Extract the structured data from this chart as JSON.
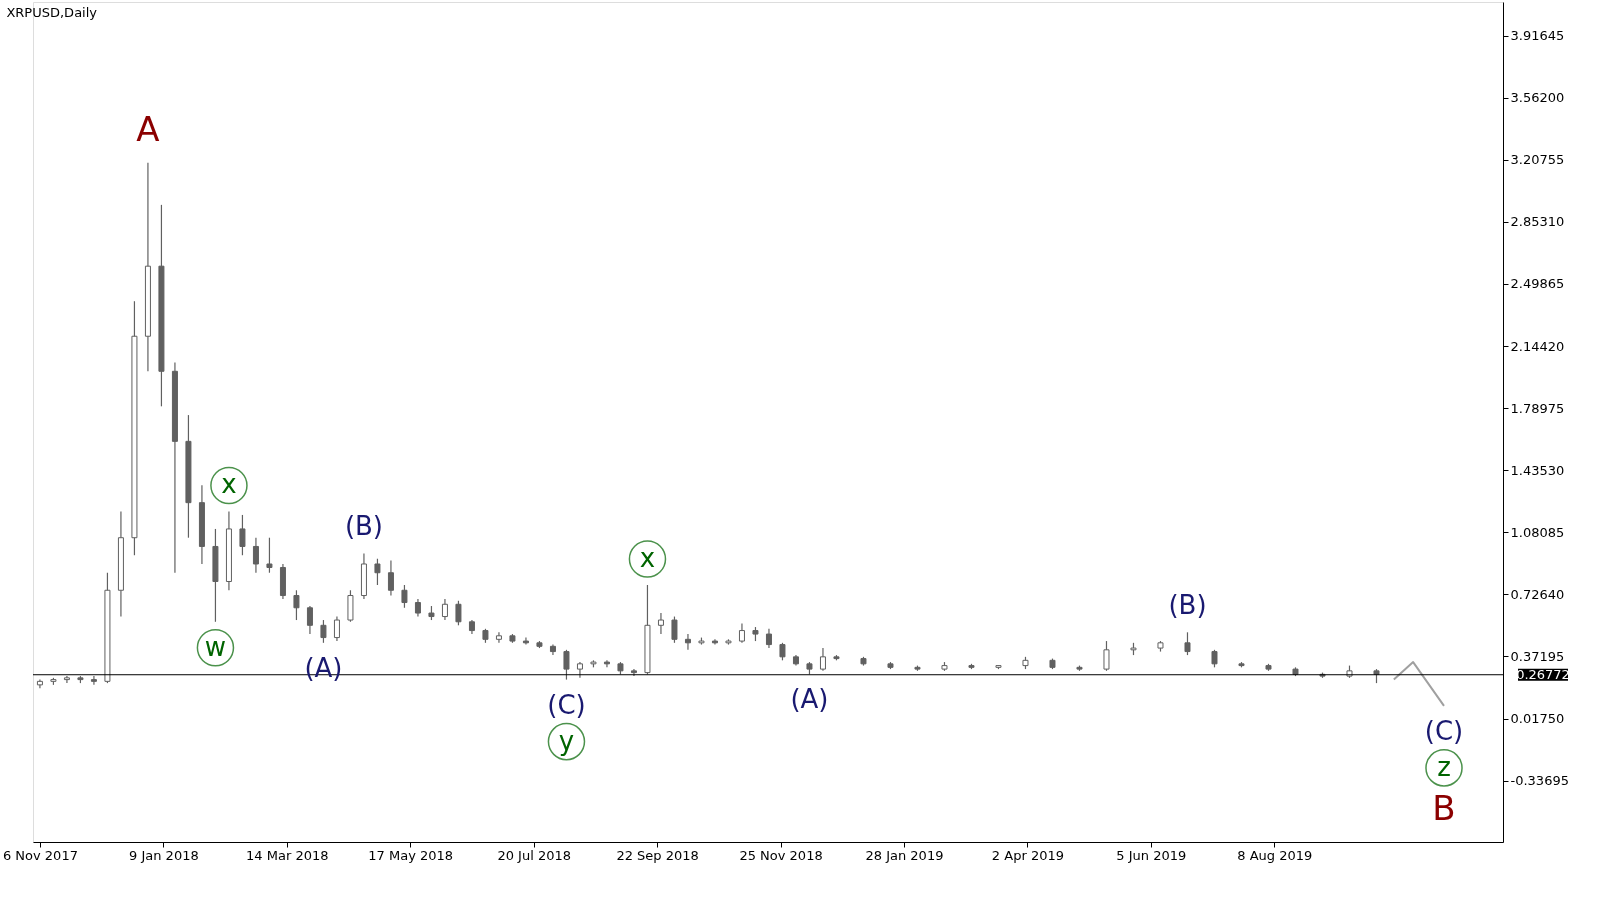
{
  "chart_data": {
    "type": "candlestick",
    "title": "XRPUSD,Daily",
    "xlim": [
      "2017-11-05",
      "2019-12-02"
    ],
    "xticks": [
      {
        "value": "2017-11-06",
        "label": "6 Nov 2017"
      },
      {
        "value": "2018-01-09",
        "label": "9 Jan 2018"
      },
      {
        "value": "2018-03-14",
        "label": "14 Mar 2018"
      },
      {
        "value": "2018-05-17",
        "label": "17 May 2018"
      },
      {
        "value": "2018-07-20",
        "label": "20 Jul 2018"
      },
      {
        "value": "2018-09-22",
        "label": "22 Sep 2018"
      },
      {
        "value": "2018-11-25",
        "label": "25 Nov 2018"
      },
      {
        "value": "2019-01-28",
        "label": "28 Jan 2019"
      },
      {
        "value": "2019-04-02",
        "label": "2 Apr 2019"
      },
      {
        "value": "2019-06-05",
        "label": "5 Jun 2019"
      },
      {
        "value": "2019-08-08",
        "label": "8 Aug 2019"
      }
    ],
    "ylim": [
      -0.687,
      4.108
    ],
    "yticks": [
      {
        "value": -0.33695,
        "label": "-0.33695"
      },
      {
        "value": 0.0175,
        "label": "0.01750"
      },
      {
        "value": 0.37195,
        "label": "0.37195"
      },
      {
        "value": 0.7264,
        "label": "0.72640"
      },
      {
        "value": 1.08085,
        "label": "1.08085"
      },
      {
        "value": 1.4353,
        "label": "1.43530"
      },
      {
        "value": 1.78975,
        "label": "1.78975"
      },
      {
        "value": 2.1442,
        "label": "2.14420"
      },
      {
        "value": 2.49865,
        "label": "2.49865"
      },
      {
        "value": 2.8531,
        "label": "2.85310"
      },
      {
        "value": 3.20755,
        "label": "3.20755"
      },
      {
        "value": 3.562,
        "label": "3.56200"
      },
      {
        "value": 3.91645,
        "label": "3.91645"
      }
    ],
    "grid": false,
    "ref_lines": [
      {
        "axis": "y",
        "value": 0.26772,
        "label": "0.26772",
        "color": "#000000"
      }
    ],
    "series": [
      {
        "color": "#606060",
        "x": [
          "2017-11-06",
          "2017-11-13",
          "2017-11-20",
          "2017-11-27",
          "2017-12-04",
          "2017-12-11",
          "2017-12-18",
          "2017-12-25",
          "2018-01-01",
          "2018-01-08",
          "2018-01-15",
          "2018-01-22",
          "2018-01-29",
          "2018-02-05",
          "2018-02-12",
          "2018-02-19",
          "2018-02-26",
          "2018-03-05",
          "2018-03-12",
          "2018-03-19",
          "2018-03-26",
          "2018-04-02",
          "2018-04-09",
          "2018-04-16",
          "2018-04-23",
          "2018-04-30",
          "2018-05-07",
          "2018-05-14",
          "2018-05-21",
          "2018-05-28",
          "2018-06-04",
          "2018-06-11",
          "2018-06-18",
          "2018-06-25",
          "2018-07-02",
          "2018-07-09",
          "2018-07-16",
          "2018-07-23",
          "2018-07-30",
          "2018-08-06",
          "2018-08-13",
          "2018-08-20",
          "2018-08-27",
          "2018-09-03",
          "2018-09-10",
          "2018-09-17",
          "2018-09-24",
          "2018-10-01",
          "2018-10-08",
          "2018-10-15",
          "2018-10-22",
          "2018-10-29",
          "2018-11-05",
          "2018-11-12",
          "2018-11-19",
          "2018-11-26",
          "2018-12-03",
          "2018-12-10",
          "2018-12-17",
          "2018-12-24",
          "2019-01-07",
          "2019-01-21",
          "2019-02-04",
          "2019-02-18",
          "2019-03-04",
          "2019-03-18",
          "2019-04-01",
          "2019-04-15",
          "2019-04-29",
          "2019-05-13",
          "2019-05-27",
          "2019-06-10",
          "2019-06-24",
          "2019-07-08",
          "2019-07-22",
          "2019-08-05",
          "2019-08-19",
          "2019-09-02",
          "2019-09-16",
          "2019-09-30"
        ],
        "ohlc": [
          [
            0.21,
            0.24,
            0.19,
            0.23
          ],
          [
            0.23,
            0.25,
            0.21,
            0.24
          ],
          [
            0.24,
            0.26,
            0.22,
            0.25
          ],
          [
            0.25,
            0.26,
            0.22,
            0.24
          ],
          [
            0.24,
            0.26,
            0.21,
            0.23
          ],
          [
            0.23,
            0.85,
            0.22,
            0.75
          ],
          [
            0.75,
            1.2,
            0.6,
            1.05
          ],
          [
            1.05,
            2.4,
            0.95,
            2.2
          ],
          [
            2.2,
            3.19,
            2.0,
            2.6
          ],
          [
            2.6,
            2.95,
            1.8,
            2.0
          ],
          [
            2.0,
            2.05,
            0.85,
            1.6
          ],
          [
            1.6,
            1.75,
            1.05,
            1.25
          ],
          [
            1.25,
            1.35,
            0.9,
            1.0
          ],
          [
            1.0,
            1.1,
            0.57,
            0.8
          ],
          [
            0.8,
            1.2,
            0.75,
            1.1
          ],
          [
            1.1,
            1.18,
            0.95,
            1.0
          ],
          [
            1.0,
            1.05,
            0.85,
            0.9
          ],
          [
            0.9,
            1.05,
            0.85,
            0.88
          ],
          [
            0.88,
            0.9,
            0.7,
            0.72
          ],
          [
            0.72,
            0.75,
            0.58,
            0.65
          ],
          [
            0.65,
            0.66,
            0.5,
            0.55
          ],
          [
            0.55,
            0.58,
            0.45,
            0.48
          ],
          [
            0.48,
            0.6,
            0.46,
            0.58
          ],
          [
            0.58,
            0.75,
            0.57,
            0.72
          ],
          [
            0.72,
            0.96,
            0.7,
            0.9
          ],
          [
            0.9,
            0.93,
            0.78,
            0.85
          ],
          [
            0.85,
            0.92,
            0.72,
            0.75
          ],
          [
            0.75,
            0.78,
            0.65,
            0.68
          ],
          [
            0.68,
            0.7,
            0.6,
            0.62
          ],
          [
            0.62,
            0.66,
            0.58,
            0.6
          ],
          [
            0.6,
            0.7,
            0.58,
            0.67
          ],
          [
            0.67,
            0.69,
            0.55,
            0.57
          ],
          [
            0.57,
            0.58,
            0.5,
            0.52
          ],
          [
            0.52,
            0.53,
            0.45,
            0.47
          ],
          [
            0.47,
            0.51,
            0.45,
            0.49
          ],
          [
            0.49,
            0.5,
            0.45,
            0.46
          ],
          [
            0.46,
            0.48,
            0.44,
            0.45
          ],
          [
            0.45,
            0.46,
            0.42,
            0.43
          ],
          [
            0.43,
            0.44,
            0.38,
            0.4
          ],
          [
            0.4,
            0.41,
            0.24,
            0.3
          ],
          [
            0.3,
            0.34,
            0.25,
            0.33
          ],
          [
            0.33,
            0.35,
            0.31,
            0.34
          ],
          [
            0.34,
            0.35,
            0.31,
            0.33
          ],
          [
            0.33,
            0.34,
            0.27,
            0.29
          ],
          [
            0.29,
            0.3,
            0.26,
            0.28
          ],
          [
            0.28,
            0.78,
            0.27,
            0.55
          ],
          [
            0.55,
            0.62,
            0.5,
            0.58
          ],
          [
            0.58,
            0.6,
            0.45,
            0.47
          ],
          [
            0.47,
            0.5,
            0.41,
            0.45
          ],
          [
            0.45,
            0.48,
            0.44,
            0.46
          ],
          [
            0.46,
            0.47,
            0.44,
            0.45
          ],
          [
            0.45,
            0.47,
            0.44,
            0.46
          ],
          [
            0.46,
            0.56,
            0.45,
            0.52
          ],
          [
            0.52,
            0.54,
            0.46,
            0.5
          ],
          [
            0.5,
            0.53,
            0.42,
            0.44
          ],
          [
            0.44,
            0.45,
            0.35,
            0.37
          ],
          [
            0.37,
            0.38,
            0.32,
            0.33
          ],
          [
            0.33,
            0.34,
            0.27,
            0.3
          ],
          [
            0.3,
            0.42,
            0.29,
            0.37
          ],
          [
            0.37,
            0.38,
            0.35,
            0.36
          ],
          [
            0.36,
            0.37,
            0.32,
            0.33
          ],
          [
            0.33,
            0.34,
            0.3,
            0.31
          ],
          [
            0.31,
            0.32,
            0.29,
            0.3
          ],
          [
            0.3,
            0.34,
            0.29,
            0.32
          ],
          [
            0.32,
            0.33,
            0.3,
            0.31
          ],
          [
            0.31,
            0.32,
            0.3,
            0.32
          ],
          [
            0.32,
            0.37,
            0.3,
            0.35
          ],
          [
            0.35,
            0.36,
            0.3,
            0.31
          ],
          [
            0.31,
            0.32,
            0.29,
            0.3
          ],
          [
            0.3,
            0.46,
            0.29,
            0.41
          ],
          [
            0.41,
            0.45,
            0.38,
            0.42
          ],
          [
            0.42,
            0.46,
            0.4,
            0.45
          ],
          [
            0.45,
            0.51,
            0.38,
            0.4
          ],
          [
            0.4,
            0.41,
            0.31,
            0.33
          ],
          [
            0.33,
            0.34,
            0.31,
            0.32
          ],
          [
            0.32,
            0.33,
            0.29,
            0.3
          ],
          [
            0.3,
            0.31,
            0.26,
            0.27
          ],
          [
            0.27,
            0.28,
            0.25,
            0.26
          ],
          [
            0.26,
            0.32,
            0.25,
            0.29
          ],
          [
            0.29,
            0.3,
            0.22,
            0.27
          ]
        ]
      },
      {
        "type": "line",
        "color": "#a0a0a0",
        "x": [
          "2019-10-09",
          "2019-10-19",
          "2019-11-04"
        ],
        "values": [
          0.24,
          0.34,
          0.09
        ]
      }
    ],
    "annotations": [
      {
        "text": "A",
        "x": "2018-01-01",
        "y": 3.19
      },
      {
        "text": "w",
        "x": "2018-02-05",
        "y": 0.57
      },
      {
        "text": "x",
        "x": "2018-02-12",
        "y": 1.2
      },
      {
        "text": "(A)",
        "x": "2018-04-02",
        "y": 0.45
      },
      {
        "text": "(B)",
        "x": "2018-04-23",
        "y": 0.96
      },
      {
        "text": "(C)",
        "x": "2018-08-06",
        "y": 0.24
      },
      {
        "text": "y",
        "x": "2018-08-06",
        "y": 0.24
      },
      {
        "text": "x",
        "x": "2018-09-17",
        "y": 0.78
      },
      {
        "text": "(A)",
        "x": "2018-12-10",
        "y": 0.27
      },
      {
        "text": "(B)",
        "x": "2019-06-24",
        "y": 0.51
      },
      {
        "text": "(C)",
        "x": "2019-11-04",
        "y": 0.09
      },
      {
        "text": "z",
        "x": "2019-11-04",
        "y": 0.09
      },
      {
        "text": "B",
        "x": "2019-11-04",
        "y": 0.09
      }
    ]
  }
}
